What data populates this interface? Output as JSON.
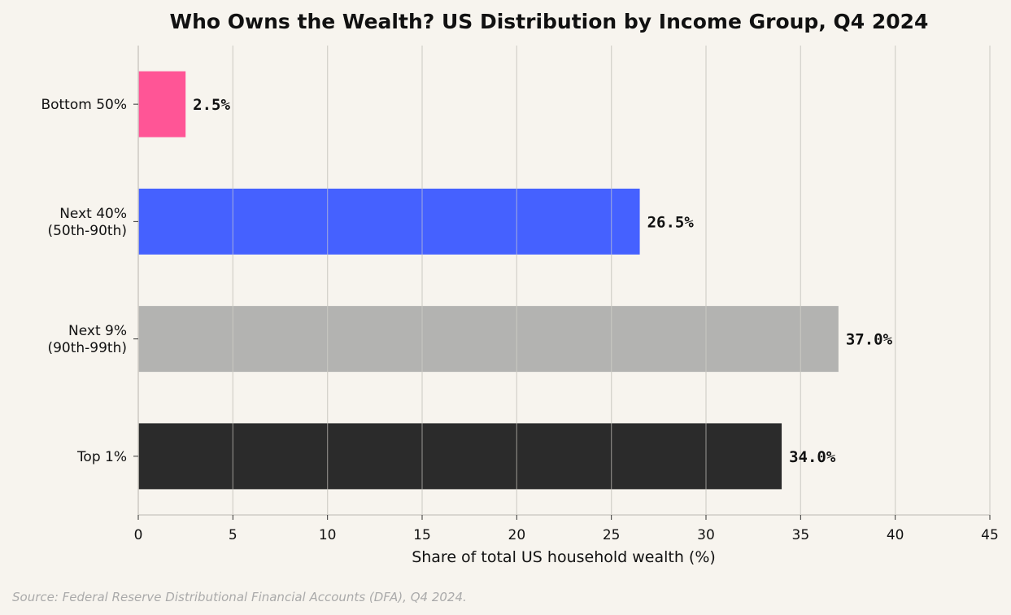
{
  "chart_data": {
    "type": "bar",
    "orientation": "horizontal",
    "title": "Who Owns the Wealth? US Distribution by Income Group, Q4 2024",
    "xlabel": "Share of total US household wealth (%)",
    "ylabel": "",
    "xlim": [
      0,
      45
    ],
    "xticks": [
      0,
      5,
      10,
      15,
      20,
      25,
      30,
      35,
      40,
      45
    ],
    "grid": "vertical",
    "categories": [
      [
        "Bottom 50%"
      ],
      [
        "Next 40%",
        "(50th-90th)"
      ],
      [
        "Next 9%",
        "(90th-99th)"
      ],
      [
        "Top 1%"
      ]
    ],
    "values": [
      2.5,
      26.5,
      37.0,
      34.0
    ],
    "value_labels": [
      "2.5%",
      "26.5%",
      "37.0%",
      "34.0%"
    ],
    "colors": [
      "#ff5596",
      "#4561ff",
      "#b3b3b1",
      "#2b2b2b"
    ],
    "source": "Source: Federal Reserve Distributional Financial Accounts (DFA), Q4 2024."
  }
}
